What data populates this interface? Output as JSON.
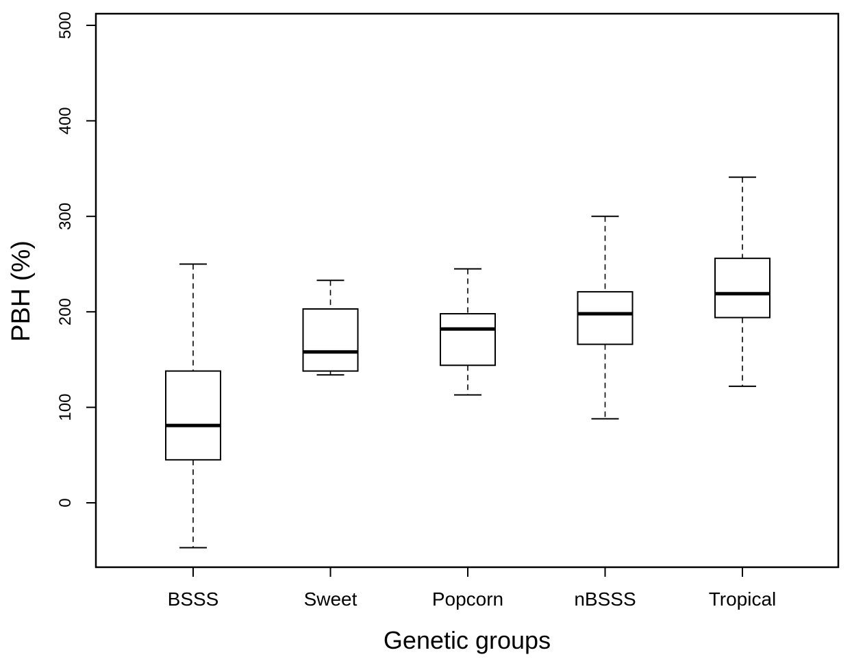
{
  "chart_data": {
    "type": "boxplot",
    "title": "",
    "xlabel": "Genetic groups",
    "ylabel": "PBH (%)",
    "ylim": [
      -68,
      512
    ],
    "yticks": [
      0,
      100,
      200,
      300,
      400,
      500
    ],
    "ytick_labels": [
      "0",
      "100",
      "200",
      "300",
      "400",
      "500"
    ],
    "categories": [
      "BSSS",
      "Sweet",
      "Popcorn",
      "nBSSS",
      "Tropical"
    ],
    "boxes": [
      {
        "name": "BSSS",
        "whisker_low": -47,
        "q1": 45,
        "median": 81,
        "q3": 138,
        "whisker_high": 250
      },
      {
        "name": "Sweet",
        "whisker_low": 134,
        "q1": 138,
        "median": 158,
        "q3": 203,
        "whisker_high": 233
      },
      {
        "name": "Popcorn",
        "whisker_low": 113,
        "q1": 144,
        "median": 182,
        "q3": 198,
        "whisker_high": 245
      },
      {
        "name": "nBSSS",
        "whisker_low": 88,
        "q1": 166,
        "median": 198,
        "q3": 221,
        "whisker_high": 300
      },
      {
        "name": "Tropical",
        "whisker_low": 122,
        "q1": 194,
        "median": 219,
        "q3": 256,
        "whisker_high": 341
      }
    ],
    "grid": false,
    "legend": "none"
  }
}
